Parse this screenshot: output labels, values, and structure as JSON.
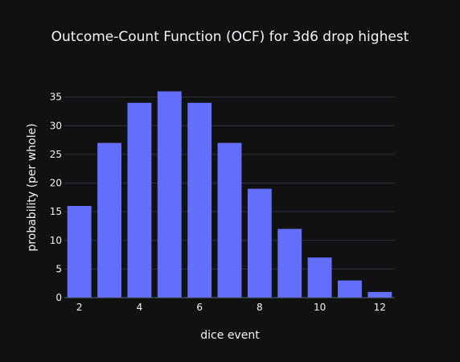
{
  "chart_data": {
    "type": "bar",
    "title": "Outcome-Count Function (OCF) for 3d6 drop highest",
    "xlabel": "dice event",
    "ylabel": "probability (per whole)",
    "x": [
      2,
      3,
      4,
      5,
      6,
      7,
      8,
      9,
      10,
      11,
      12
    ],
    "values": [
      16,
      27,
      34,
      36,
      34,
      27,
      19,
      12,
      7,
      3,
      1
    ],
    "xlim": [
      1.5,
      12.5
    ],
    "ylim": [
      0,
      37.9
    ],
    "x_ticks": [
      2,
      4,
      6,
      8,
      10,
      12
    ],
    "y_ticks": [
      0,
      5,
      10,
      15,
      20,
      25,
      30,
      35
    ],
    "grid": true,
    "legend": false,
    "bar_color": "#636efa",
    "background": "#111111",
    "grid_color": "#283442",
    "text_color": "#f2f5fa"
  }
}
